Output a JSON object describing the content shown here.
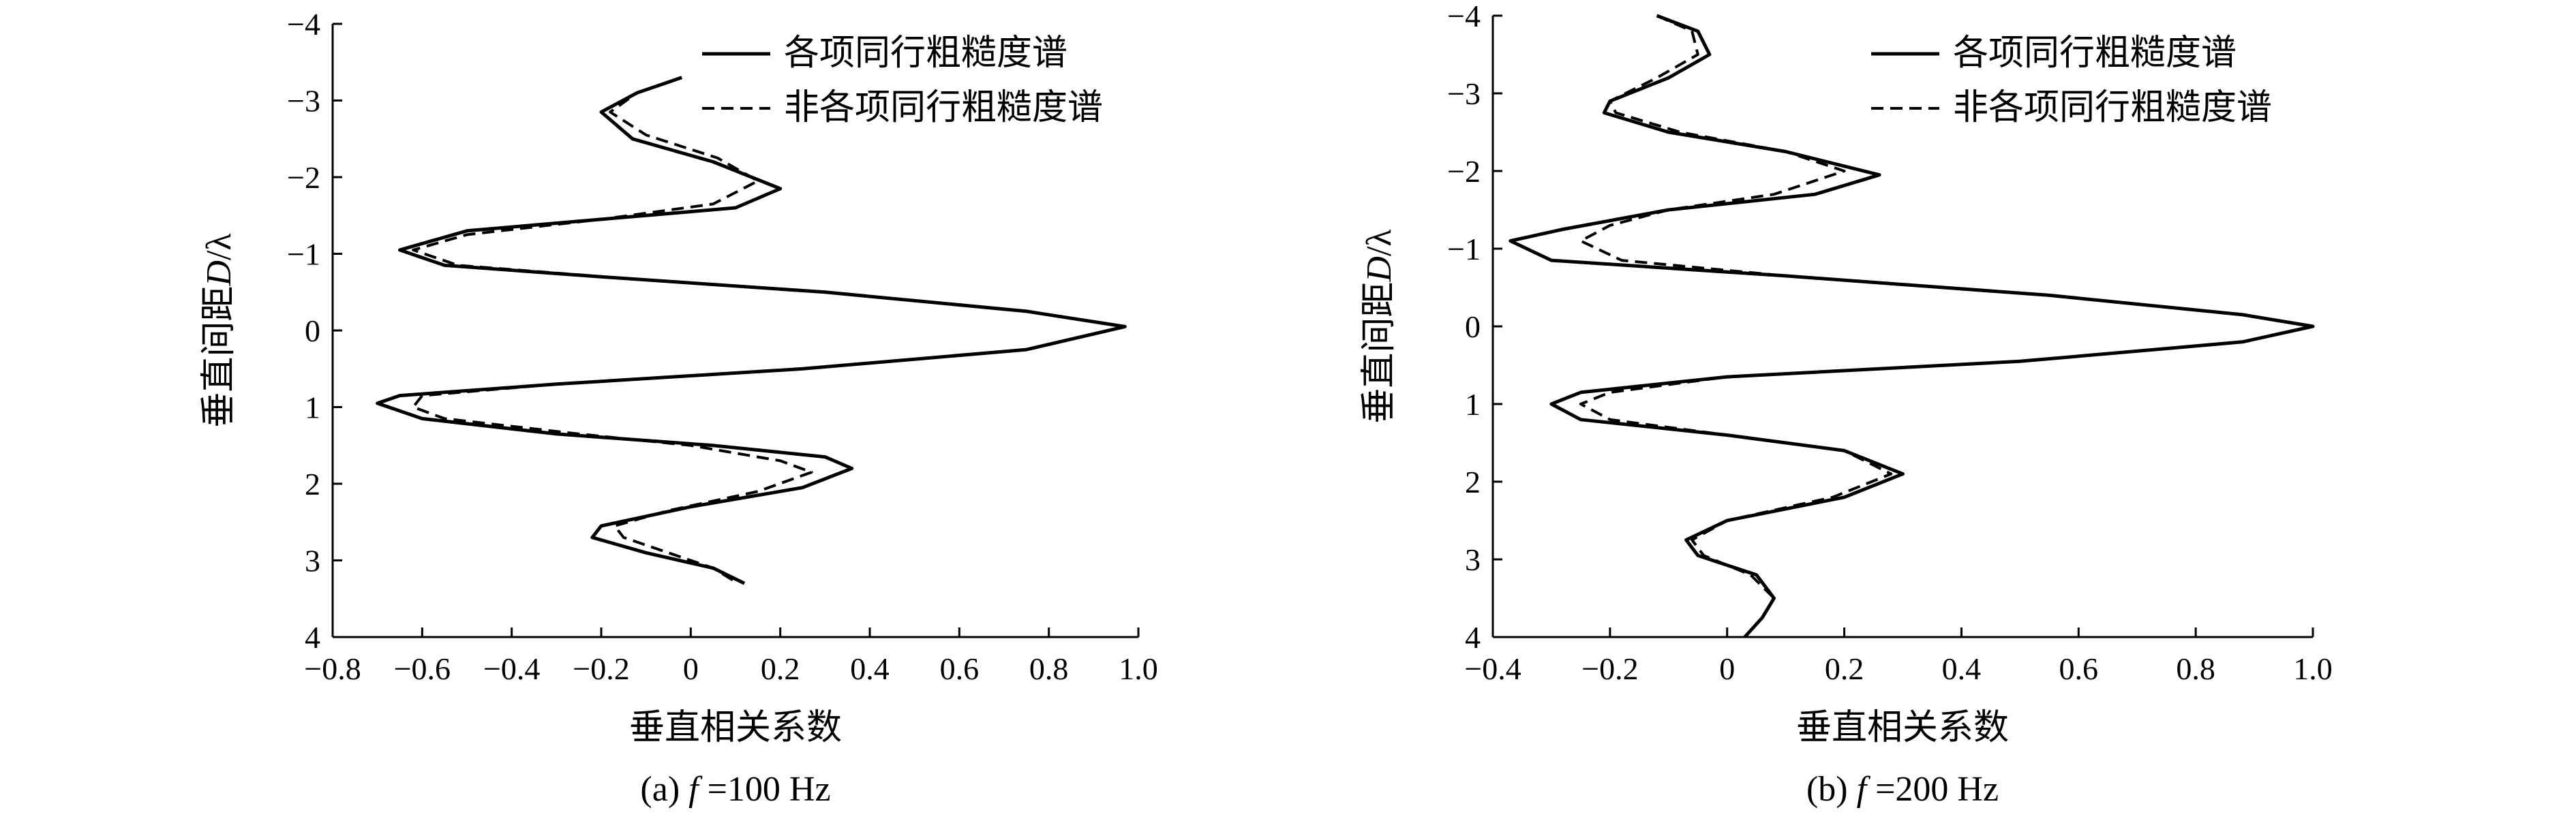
{
  "chart_data": [
    {
      "type": "line",
      "caption_prefix": "(a) ",
      "caption_var": "f",
      "caption_value": " =100 Hz",
      "xlabel": "垂直相关系数",
      "ylabel_prefix": "垂直间距",
      "ylabel_var": "D",
      "ylabel_suffix": "/λ",
      "xlim": [
        -0.8,
        1.0
      ],
      "ylim": [
        -4,
        4
      ],
      "y_inverted": true,
      "xticks": [
        -0.8,
        -0.6,
        -0.4,
        -0.2,
        0,
        0.2,
        0.4,
        0.6,
        0.8,
        1.0
      ],
      "xtick_labels": [
        "−0.8",
        "−0.6",
        "−0.4",
        "−0.2",
        "0",
        "0.2",
        "0.4",
        "0.6",
        "0.8",
        "1.0"
      ],
      "yticks": [
        -4,
        -3,
        -2,
        -1,
        0,
        1,
        2,
        3,
        4
      ],
      "ytick_labels": [
        "−4",
        "−3",
        "−2",
        "−1",
        "0",
        "1",
        "2",
        "3",
        "4"
      ],
      "legend_position": "top-right",
      "series": [
        {
          "name": "各项同行粗糙度谱",
          "style": "solid",
          "points": [
            [
              -0.02,
              -3.3
            ],
            [
              -0.12,
              -3.1
            ],
            [
              -0.2,
              -2.85
            ],
            [
              -0.13,
              -2.5
            ],
            [
              0.05,
              -2.2
            ],
            [
              0.2,
              -1.85
            ],
            [
              0.1,
              -1.6
            ],
            [
              -0.2,
              -1.45
            ],
            [
              -0.5,
              -1.3
            ],
            [
              -0.65,
              -1.05
            ],
            [
              -0.55,
              -0.85
            ],
            [
              -0.2,
              -0.7
            ],
            [
              0.3,
              -0.5
            ],
            [
              0.75,
              -0.25
            ],
            [
              0.97,
              -0.05
            ],
            [
              0.75,
              0.25
            ],
            [
              0.25,
              0.5
            ],
            [
              -0.3,
              0.7
            ],
            [
              -0.65,
              0.85
            ],
            [
              -0.7,
              0.95
            ],
            [
              -0.6,
              1.15
            ],
            [
              -0.3,
              1.35
            ],
            [
              0.05,
              1.5
            ],
            [
              0.3,
              1.65
            ],
            [
              0.36,
              1.8
            ],
            [
              0.25,
              2.05
            ],
            [
              0.0,
              2.3
            ],
            [
              -0.2,
              2.55
            ],
            [
              -0.22,
              2.7
            ],
            [
              -0.1,
              2.9
            ],
            [
              0.05,
              3.1
            ],
            [
              0.12,
              3.3
            ]
          ]
        },
        {
          "name": "非各项同行粗糙度谱",
          "style": "dashed",
          "points": [
            [
              -0.02,
              -3.3
            ],
            [
              -0.12,
              -3.1
            ],
            [
              -0.18,
              -2.85
            ],
            [
              -0.1,
              -2.55
            ],
            [
              0.06,
              -2.25
            ],
            [
              0.15,
              -1.95
            ],
            [
              0.05,
              -1.65
            ],
            [
              -0.2,
              -1.45
            ],
            [
              -0.5,
              -1.25
            ],
            [
              -0.62,
              -1.05
            ],
            [
              -0.52,
              -0.85
            ],
            [
              -0.15,
              -0.68
            ],
            [
              0.3,
              -0.5
            ],
            [
              0.75,
              -0.25
            ],
            [
              0.97,
              -0.05
            ],
            [
              0.75,
              0.25
            ],
            [
              0.25,
              0.5
            ],
            [
              -0.3,
              0.7
            ],
            [
              -0.6,
              0.85
            ],
            [
              -0.62,
              1.0
            ],
            [
              -0.55,
              1.15
            ],
            [
              -0.25,
              1.35
            ],
            [
              0.0,
              1.5
            ],
            [
              0.2,
              1.7
            ],
            [
              0.27,
              1.85
            ],
            [
              0.15,
              2.1
            ],
            [
              -0.05,
              2.35
            ],
            [
              -0.17,
              2.55
            ],
            [
              -0.15,
              2.7
            ],
            [
              -0.05,
              2.9
            ],
            [
              0.05,
              3.1
            ],
            [
              0.1,
              3.28
            ]
          ]
        }
      ]
    },
    {
      "type": "line",
      "caption_prefix": "(b) ",
      "caption_var": "f",
      "caption_value": " =200 Hz",
      "xlabel": "垂直相关系数",
      "ylabel_prefix": "垂直间距",
      "ylabel_var": "D",
      "ylabel_suffix": "/λ",
      "xlim": [
        -0.4,
        1.0
      ],
      "ylim": [
        -4,
        4
      ],
      "y_inverted": true,
      "xticks": [
        -0.4,
        -0.2,
        0,
        0.2,
        0.4,
        0.6,
        0.8,
        1.0
      ],
      "xtick_labels": [
        "−0.4",
        "−0.2",
        "0",
        "0.2",
        "0.4",
        "0.6",
        "0.8",
        "1.0"
      ],
      "yticks": [
        -4,
        -3,
        -2,
        -1,
        0,
        1,
        2,
        3,
        4
      ],
      "ytick_labels": [
        "−4",
        "−3",
        "−2",
        "−1",
        "0",
        "1",
        "2",
        "3",
        "4"
      ],
      "legend_position": "top-right",
      "series": [
        {
          "name": "各项同行粗糙度谱",
          "style": "solid",
          "points": [
            [
              -0.12,
              -4.0
            ],
            [
              -0.05,
              -3.8
            ],
            [
              -0.03,
              -3.5
            ],
            [
              -0.1,
              -3.2
            ],
            [
              -0.2,
              -2.9
            ],
            [
              -0.21,
              -2.75
            ],
            [
              -0.1,
              -2.5
            ],
            [
              0.1,
              -2.25
            ],
            [
              0.26,
              -1.95
            ],
            [
              0.15,
              -1.7
            ],
            [
              -0.1,
              -1.5
            ],
            [
              -0.28,
              -1.25
            ],
            [
              -0.37,
              -1.1
            ],
            [
              -0.3,
              -0.85
            ],
            [
              0.1,
              -0.65
            ],
            [
              0.55,
              -0.4
            ],
            [
              0.88,
              -0.15
            ],
            [
              1.0,
              0.0
            ],
            [
              0.88,
              0.2
            ],
            [
              0.5,
              0.45
            ],
            [
              0.0,
              0.65
            ],
            [
              -0.25,
              0.85
            ],
            [
              -0.3,
              1.0
            ],
            [
              -0.25,
              1.2
            ],
            [
              0.0,
              1.4
            ],
            [
              0.2,
              1.6
            ],
            [
              0.3,
              1.9
            ],
            [
              0.2,
              2.2
            ],
            [
              0.0,
              2.5
            ],
            [
              -0.07,
              2.75
            ],
            [
              -0.05,
              2.95
            ],
            [
              0.05,
              3.2
            ],
            [
              0.08,
              3.5
            ],
            [
              0.06,
              3.75
            ],
            [
              0.03,
              4.0
            ]
          ]
        },
        {
          "name": "非各项同行粗糙度谱",
          "style": "dashed",
          "points": [
            [
              -0.12,
              -4.0
            ],
            [
              -0.06,
              -3.8
            ],
            [
              -0.05,
              -3.5
            ],
            [
              -0.12,
              -3.2
            ],
            [
              -0.2,
              -2.9
            ],
            [
              -0.19,
              -2.75
            ],
            [
              -0.08,
              -2.5
            ],
            [
              0.1,
              -2.25
            ],
            [
              0.2,
              -2.0
            ],
            [
              0.08,
              -1.7
            ],
            [
              -0.1,
              -1.5
            ],
            [
              -0.2,
              -1.3
            ],
            [
              -0.25,
              -1.1
            ],
            [
              -0.18,
              -0.85
            ],
            [
              0.1,
              -0.65
            ],
            [
              0.55,
              -0.4
            ],
            [
              0.88,
              -0.15
            ],
            [
              1.0,
              0.0
            ],
            [
              0.88,
              0.2
            ],
            [
              0.5,
              0.45
            ],
            [
              0.0,
              0.65
            ],
            [
              -0.2,
              0.85
            ],
            [
              -0.25,
              1.0
            ],
            [
              -0.2,
              1.2
            ],
            [
              0.0,
              1.4
            ],
            [
              0.2,
              1.6
            ],
            [
              0.28,
              1.9
            ],
            [
              0.18,
              2.2
            ],
            [
              0.0,
              2.5
            ],
            [
              -0.06,
              2.75
            ],
            [
              -0.04,
              2.95
            ],
            [
              0.04,
              3.2
            ],
            [
              0.08,
              3.5
            ],
            [
              0.06,
              3.75
            ],
            [
              0.03,
              4.0
            ]
          ]
        }
      ]
    }
  ]
}
